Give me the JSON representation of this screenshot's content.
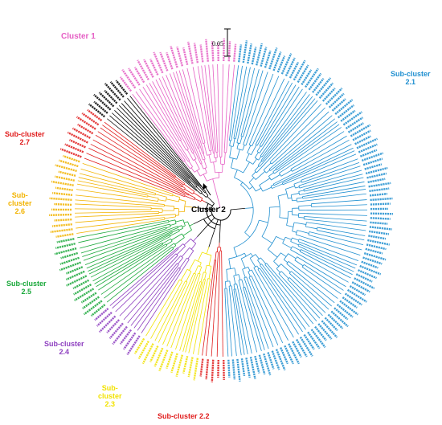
{
  "colors": {
    "cluster1": "#e55fc4",
    "sub21": "#1f8fd0",
    "sub22": "#e01a1a",
    "sub23": "#f2e200",
    "sub24": "#8e3fc0",
    "sub25": "#19a83a",
    "sub26": "#f2b300",
    "sub27": "#e01a1a",
    "cluster2": "#000000"
  },
  "labels": {
    "cluster1": "Cluster 1",
    "cluster2": "Cluster 2",
    "sub21_a": "Sub-cluster",
    "sub21_b": "2.1",
    "sub22": "Sub-cluster 2.2",
    "sub23_a": "Sub-",
    "sub23_b": "cluster",
    "sub23_c": "2.3",
    "sub24_a": "Sub-cluster",
    "sub24_b": "2.4",
    "sub25_a": "Sub-cluster",
    "sub25_b": "2.5",
    "sub26_a": "Sub-",
    "sub26_b": "cluster",
    "sub26_c": "2.6",
    "sub27_a": "Sub-cluster",
    "sub27_b": "2.7"
  },
  "scale_bar": {
    "value": "0.05"
  },
  "groups": [
    {
      "key": "cluster1",
      "color_key": "cluster1",
      "angle_start": -84,
      "angle_end": -128,
      "prefix": "JNFP",
      "count": 22
    },
    {
      "key": "black",
      "color_key": "cluster2",
      "angle_start": -128,
      "angle_end": -142,
      "prefix": "JNFP",
      "count": 8
    },
    {
      "key": "sub27",
      "color_key": "sub27",
      "angle_start": -142,
      "angle_end": -160,
      "prefix": "JNFP",
      "count": 9
    },
    {
      "key": "sub26",
      "color_key": "sub26",
      "angle_start": -160,
      "angle_end": -190,
      "prefix": "EEP",
      "count": 16
    },
    {
      "key": "sub25",
      "color_key": "sub25",
      "angle_start": -190,
      "angle_end": -220,
      "prefix": "EEP",
      "count": 16
    },
    {
      "key": "sub24",
      "color_key": "sub24",
      "angle_start": -220,
      "angle_end": -238,
      "prefix": "EEP",
      "count": 9
    },
    {
      "key": "sub23",
      "color_key": "sub23",
      "angle_start": -238,
      "angle_end": -262,
      "prefix": "EEP",
      "count": 12
    },
    {
      "key": "sub22",
      "color_key": "sub22",
      "angle_start": -262,
      "angle_end": -272,
      "prefix": "HDp",
      "count": 5
    },
    {
      "key": "sub21",
      "color_key": "sub21",
      "angle_start": -272,
      "angle_end": -444,
      "prefix": "HDp",
      "count": 100
    }
  ]
}
